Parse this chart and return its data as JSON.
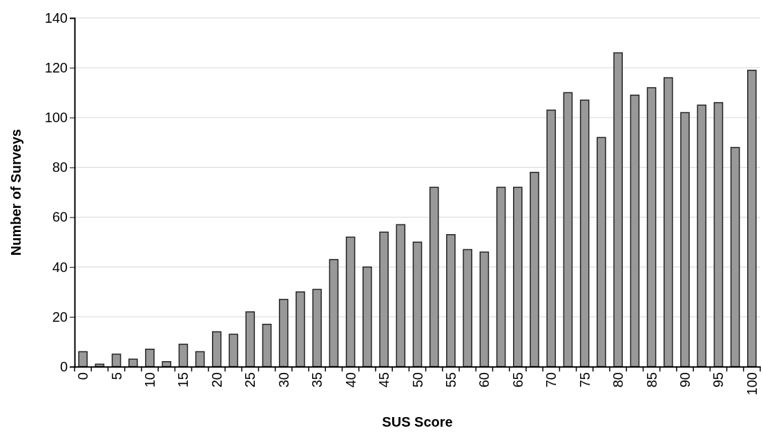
{
  "chart_data": {
    "type": "bar",
    "xlabel": "SUS Score",
    "ylabel": "Number of Surveys",
    "categories": [
      "0",
      null,
      "5",
      null,
      "10",
      null,
      "15",
      null,
      "20",
      null,
      "25",
      null,
      "30",
      null,
      "35",
      null,
      "40",
      null,
      "45",
      null,
      "50",
      null,
      "55",
      null,
      "60",
      null,
      "65",
      null,
      "70",
      null,
      "75",
      null,
      "80",
      null,
      "85",
      null,
      "90",
      null,
      "95",
      null,
      "100"
    ],
    "values": [
      6,
      1,
      5,
      3,
      7,
      2,
      9,
      6,
      14,
      13,
      22,
      17,
      27,
      30,
      31,
      43,
      52,
      40,
      54,
      57,
      50,
      72,
      53,
      47,
      46,
      72,
      72,
      78,
      103,
      110,
      107,
      92,
      126,
      109,
      112,
      116,
      102,
      105,
      106,
      88,
      119
    ],
    "color": "#999999",
    "ylim": [
      0,
      140
    ],
    "yticks": [
      0,
      20,
      40,
      60,
      80,
      100,
      120,
      140
    ],
    "grid": "y"
  }
}
